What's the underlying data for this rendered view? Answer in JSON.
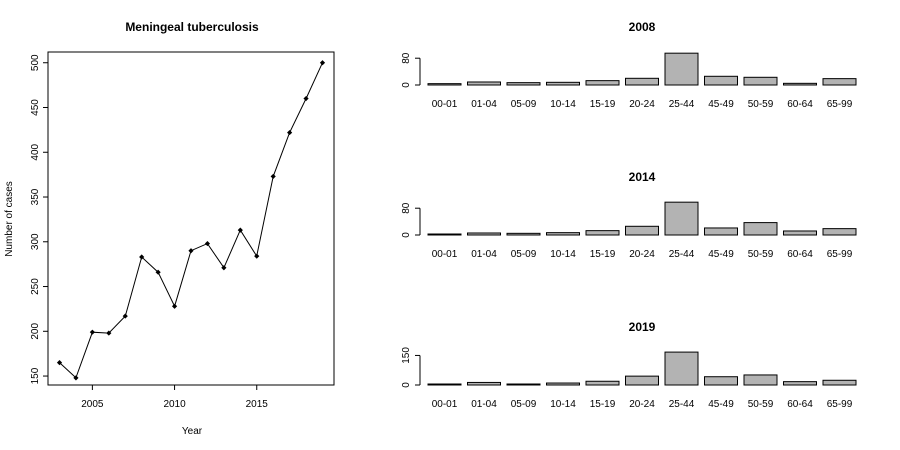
{
  "chart_data": [
    {
      "type": "line",
      "title": "Meningeal tuberculosis",
      "xlabel": "Year",
      "ylabel": "Number of cases",
      "x": [
        2003,
        2004,
        2005,
        2006,
        2007,
        2008,
        2009,
        2010,
        2011,
        2012,
        2013,
        2014,
        2015,
        2016,
        2017,
        2018,
        2019
      ],
      "values": [
        165,
        148,
        199,
        198,
        217,
        283,
        266,
        228,
        290,
        298,
        271,
        313,
        284,
        373,
        422,
        460,
        500
      ],
      "xlim": [
        2002.3,
        2019.7
      ],
      "ylim": [
        140,
        512
      ],
      "xticks": [
        2005,
        2010,
        2015
      ],
      "xtick_labels": [
        "2005",
        "2010",
        "2015"
      ],
      "yticks": [
        150,
        200,
        250,
        300,
        350,
        400,
        450,
        500
      ],
      "ytick_labels": [
        "150",
        "200",
        "250",
        "300",
        "350",
        "400",
        "450",
        "500"
      ],
      "marker": "diamond",
      "grid": false
    },
    {
      "type": "bar",
      "title": "2008",
      "categories": [
        "00-01",
        "01-04",
        "05-09",
        "10-14",
        "15-19",
        "20-24",
        "25-44",
        "45-49",
        "50-59",
        "60-64",
        "65-99"
      ],
      "values": [
        4,
        9,
        7,
        8,
        13,
        20,
        95,
        26,
        23,
        5,
        19
      ],
      "ylim": [
        0,
        100
      ],
      "yticks": [
        0,
        80
      ],
      "ytick_labels": [
        "0",
        "80"
      ],
      "bar_color": "#b3b3b3",
      "grid": false
    },
    {
      "type": "bar",
      "title": "2014",
      "categories": [
        "00-01",
        "01-04",
        "05-09",
        "10-14",
        "15-19",
        "20-24",
        "25-44",
        "45-49",
        "50-59",
        "60-64",
        "65-99"
      ],
      "values": [
        2,
        6,
        5,
        7,
        13,
        26,
        98,
        21,
        37,
        12,
        19
      ],
      "ylim": [
        0,
        100
      ],
      "yticks": [
        0,
        80
      ],
      "ytick_labels": [
        "0",
        "80"
      ],
      "bar_color": "#b3b3b3",
      "grid": false
    },
    {
      "type": "bar",
      "title": "2019",
      "categories": [
        "00-01",
        "01-04",
        "05-09",
        "10-14",
        "15-19",
        "20-24",
        "25-44",
        "45-49",
        "50-59",
        "60-64",
        "65-99"
      ],
      "values": [
        5,
        13,
        4,
        10,
        19,
        45,
        167,
        42,
        51,
        17,
        24
      ],
      "ylim": [
        0,
        170
      ],
      "yticks": [
        0,
        150
      ],
      "ytick_labels": [
        "0",
        "150"
      ],
      "bar_color": "#b3b3b3",
      "grid": false
    }
  ]
}
